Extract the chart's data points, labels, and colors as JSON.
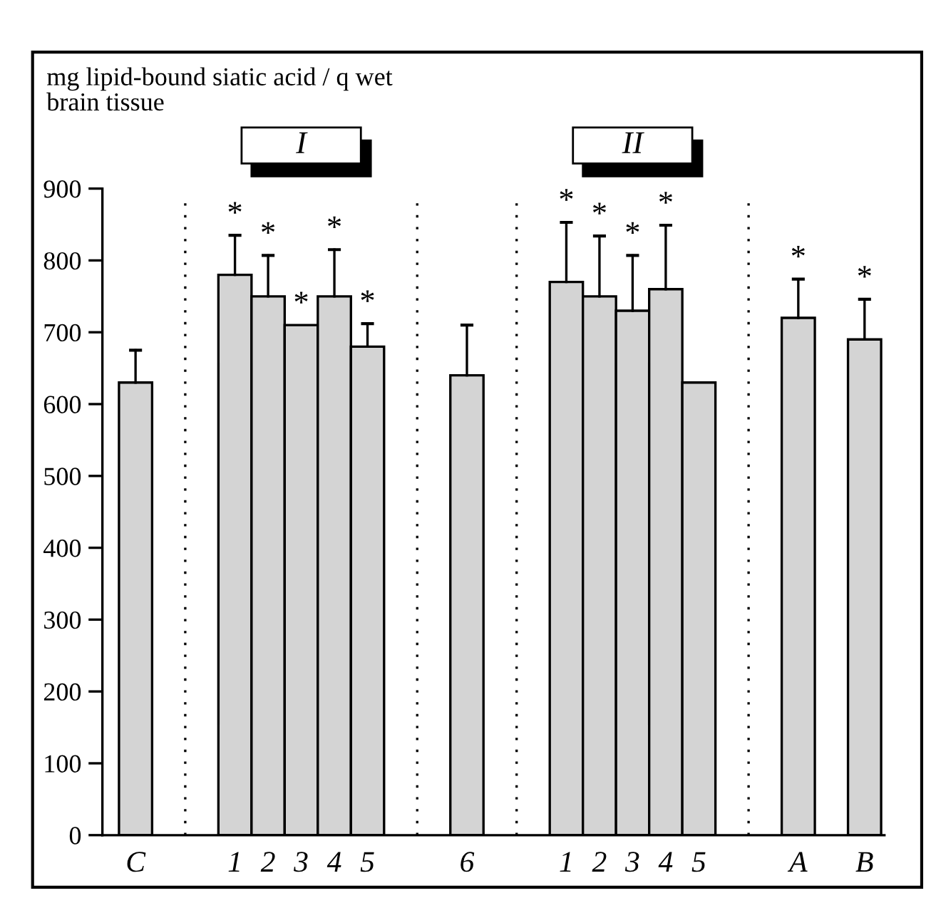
{
  "chart_data": {
    "type": "bar",
    "ylabel": "mg lipid-bound siatic acid / q wet\nbrain tissue",
    "categories": [
      "C",
      null,
      null,
      "1",
      "2",
      "3",
      "4",
      "5",
      null,
      null,
      "6",
      null,
      null,
      "1",
      "2",
      "3",
      "4",
      "5",
      null,
      null,
      "A",
      null,
      "B"
    ],
    "values": [
      630,
      null,
      null,
      780,
      750,
      710,
      750,
      680,
      null,
      null,
      640,
      null,
      null,
      770,
      750,
      730,
      760,
      630,
      null,
      null,
      720,
      null,
      690
    ],
    "errors": [
      [
        630,
        675
      ],
      null,
      null,
      [
        780,
        835
      ],
      [
        750,
        807
      ],
      null,
      [
        750,
        815
      ],
      [
        680,
        712
      ],
      null,
      null,
      [
        640,
        710
      ],
      null,
      null,
      [
        770,
        853
      ],
      [
        750,
        834
      ],
      [
        730,
        807
      ],
      [
        760,
        849
      ],
      null,
      null,
      null,
      [
        720,
        774
      ],
      null,
      [
        690,
        746
      ]
    ],
    "value_labels": [
      null,
      null,
      null,
      "*",
      "*",
      "*",
      "*",
      "*",
      null,
      null,
      null,
      null,
      null,
      "*",
      "*",
      "*",
      "*",
      null,
      null,
      null,
      "*",
      null,
      "*"
    ],
    "color": "#d4d4d4",
    "annotations": [
      "I",
      "II"
    ],
    "ylim": [
      0,
      900
    ],
    "yticks": [
      0,
      100,
      200,
      300,
      400,
      500,
      600,
      700,
      800,
      900
    ],
    "grid": false,
    "legend": false
  }
}
